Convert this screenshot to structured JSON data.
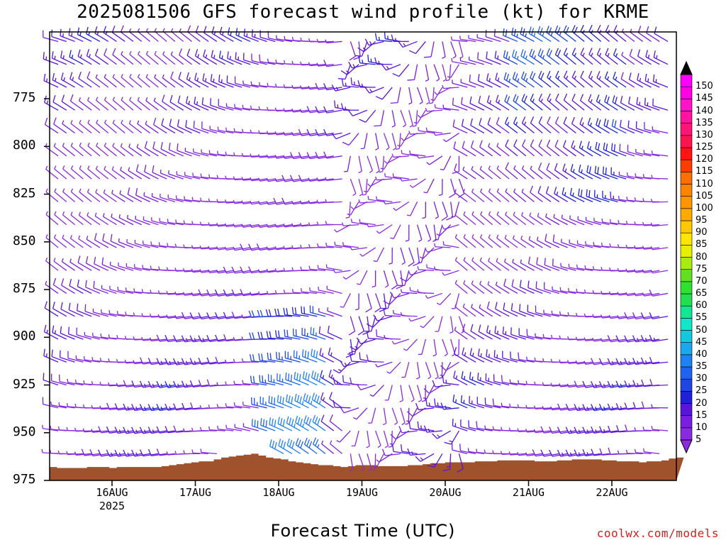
{
  "chart_data": {
    "type": "wind-barb",
    "title": "2025081506 GFS forecast wind profile (kt) for KRME",
    "xlabel": "Forecast Time (UTC)",
    "credit": "coolwx.com/models",
    "y_axis": {
      "range": [
        975,
        740
      ],
      "tick_labels": [
        "775",
        "800",
        "825",
        "850",
        "875",
        "900",
        "925",
        "950",
        "975"
      ],
      "tick_values": [
        775,
        800,
        825,
        850,
        875,
        900,
        925,
        950,
        975
      ]
    },
    "x_axis": {
      "tick_labels": [
        "16AUG",
        "17AUG",
        "18AUG",
        "19AUG",
        "20AUG",
        "21AUG",
        "22AUG"
      ],
      "year_label": "2025"
    },
    "colorbar": {
      "labels": [
        "5",
        "10",
        "15",
        "20",
        "25",
        "30",
        "35",
        "40",
        "45",
        "50",
        "55",
        "60",
        "65",
        "70",
        "75",
        "80",
        "85",
        "90",
        "95",
        "100",
        "105",
        "110",
        "115",
        "120",
        "125",
        "130",
        "135",
        "140",
        "145",
        "150"
      ],
      "colors": [
        "#8a2be2",
        "#7a1fe0",
        "#5a14dc",
        "#2020d8",
        "#1e46e6",
        "#1e64f0",
        "#1e82f5",
        "#1aa8f0",
        "#14c8e0",
        "#10e6c8",
        "#14e696",
        "#20e050",
        "#30e030",
        "#60e020",
        "#a8ec14",
        "#e6f000",
        "#ffe600",
        "#ffc800",
        "#ffaa00",
        "#ff9600",
        "#ff8200",
        "#ff6e00",
        "#ff3c00",
        "#ff1414",
        "#ff1450",
        "#ff1478",
        "#ff14a0",
        "#ff14c8",
        "#ff00e6",
        "#ff00ff"
      ]
    },
    "terrain_color": "#a0522d",
    "wind_barbs_approx": [
      {
        "time": "16AUG",
        "pressure_levels": "740-965",
        "speed_kt": "5-15",
        "direction_deg": "250-320"
      },
      {
        "time": "17AUG",
        "pressure_levels": "740-960",
        "speed_kt": "5-20",
        "direction_deg": "240-320"
      },
      {
        "time": "18AUG",
        "pressure_levels": "740-960",
        "speed_kt": "5-35",
        "direction_deg": "280-330"
      },
      {
        "time": "19AUG",
        "pressure_levels": "740-965",
        "speed_kt": "5-20",
        "direction_deg": "180-360"
      },
      {
        "time": "20AUG",
        "pressure_levels": "740-965",
        "speed_kt": "5-15",
        "direction_deg": "180-360"
      },
      {
        "time": "21AUG",
        "pressure_levels": "740-965",
        "speed_kt": "5-25",
        "direction_deg": "220-300"
      },
      {
        "time": "22AUG",
        "pressure_levels": "740-965",
        "speed_kt": "5-25",
        "direction_deg": "220-300"
      }
    ]
  }
}
